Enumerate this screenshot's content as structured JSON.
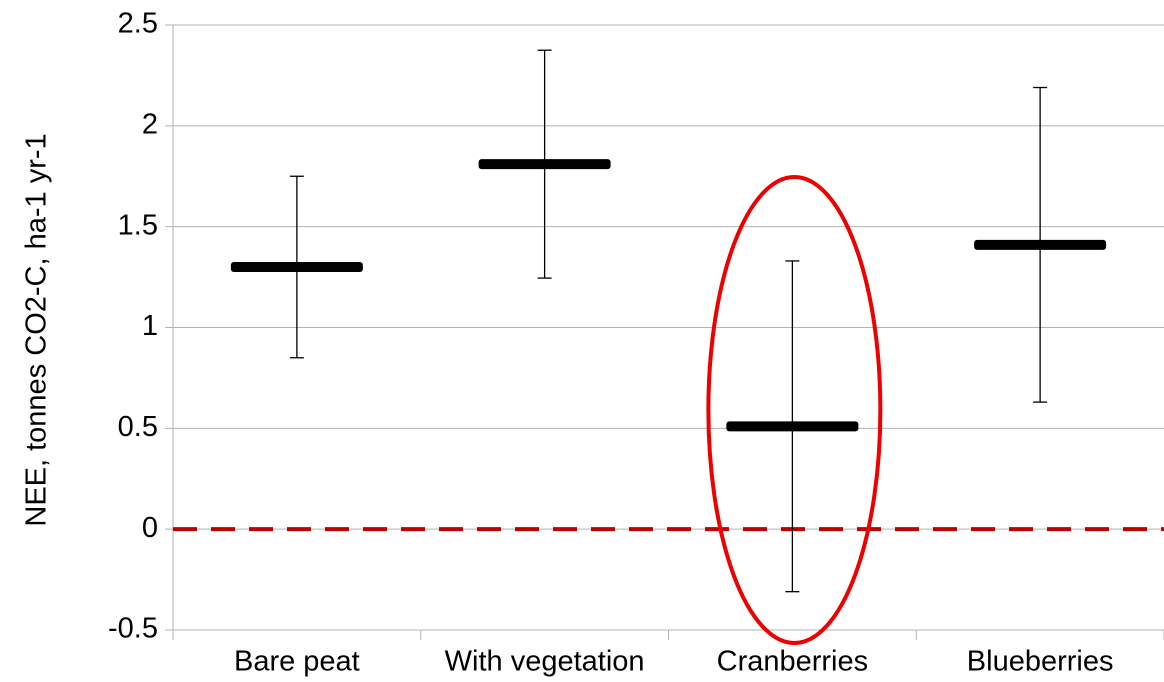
{
  "chart_data": {
    "type": "errorbar",
    "y_label": "NEE, tonnes CO2-C, ha-1 yr-1",
    "categories": [
      "Bare peat",
      "With vegetation",
      "Cranberries",
      "Blueberries"
    ],
    "values": [
      1.3,
      1.81,
      0.51,
      1.41
    ],
    "errors": [
      0.45,
      0.565,
      0.82,
      0.78
    ],
    "color": "#000000",
    "ylim": [
      -0.5,
      2.5
    ],
    "yticks": [
      -0.5,
      0,
      0.5,
      1,
      1.5,
      2,
      2.5
    ],
    "grid": true,
    "reference_line": {
      "value": 0,
      "color": "#c00000"
    },
    "highlight": {
      "index": 2,
      "color": "#ee0000"
    }
  }
}
